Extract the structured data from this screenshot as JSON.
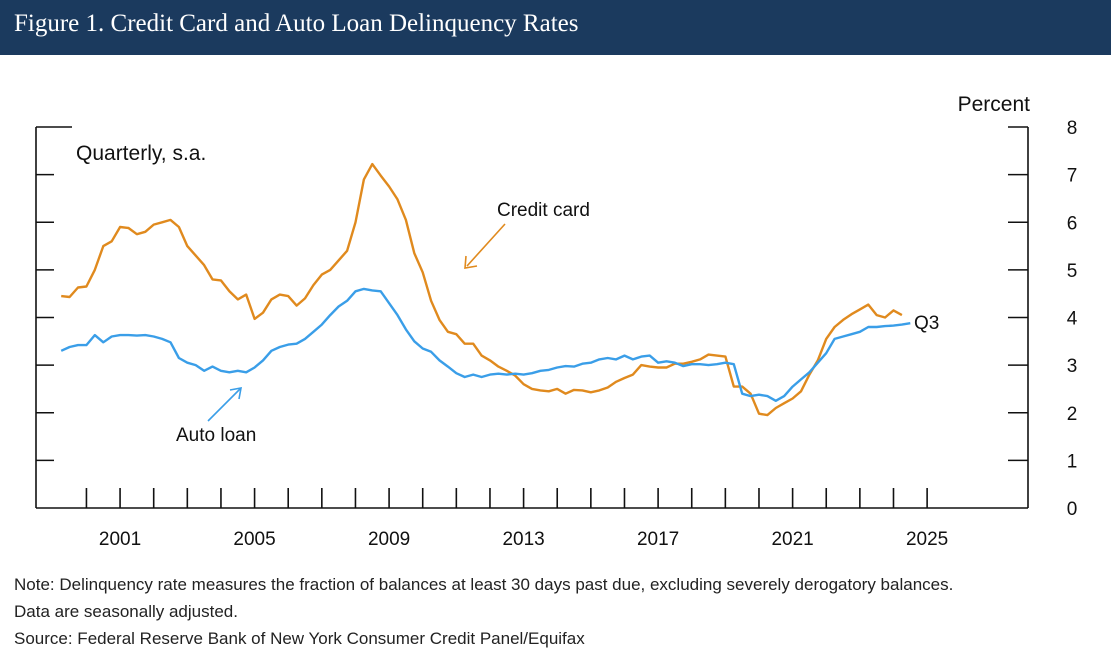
{
  "header": {
    "title": "Figure 1. Credit Card and Auto Loan Delinquency Rates"
  },
  "chart_data": {
    "type": "line",
    "title": "Figure 1. Credit Card and Auto Loan Delinquency Rates",
    "ylabel": "Percent",
    "subtitle": "Quarterly, s.a.",
    "ylim": [
      0,
      8
    ],
    "yticks": [
      0,
      1,
      2,
      3,
      4,
      5,
      6,
      7,
      8
    ],
    "xlim": [
      1999,
      2028.5
    ],
    "xtick_labels": [
      "2001",
      "2005",
      "2009",
      "2013",
      "2017",
      "2021",
      "2025"
    ],
    "xtick_label_years": [
      2001,
      2005,
      2009,
      2013,
      2017,
      2021,
      2025
    ],
    "minor_tick_years": [
      2000,
      2001,
      2002,
      2003,
      2004,
      2005,
      2006,
      2007,
      2008,
      2009,
      2010,
      2011,
      2012,
      2013,
      2014,
      2015,
      2016,
      2017,
      2018,
      2019,
      2020,
      2021,
      2022,
      2023,
      2024,
      2025
    ],
    "annotations": {
      "credit_card": "Credit card",
      "auto_loan": "Auto loan",
      "latest": "Q3"
    },
    "series": [
      {
        "name": "Credit card",
        "color": "#e08a1e",
        "points": [
          [
            1999.75,
            4.45
          ],
          [
            2000.0,
            4.43
          ],
          [
            2000.25,
            4.63
          ],
          [
            2000.5,
            4.65
          ],
          [
            2000.75,
            5.0
          ],
          [
            2001.0,
            5.5
          ],
          [
            2001.25,
            5.6
          ],
          [
            2001.5,
            5.9
          ],
          [
            2001.75,
            5.88
          ],
          [
            2002.0,
            5.75
          ],
          [
            2002.25,
            5.8
          ],
          [
            2002.5,
            5.95
          ],
          [
            2002.75,
            6.0
          ],
          [
            2003.0,
            6.05
          ],
          [
            2003.25,
            5.9
          ],
          [
            2003.5,
            5.5
          ],
          [
            2003.75,
            5.3
          ],
          [
            2004.0,
            5.1
          ],
          [
            2004.25,
            4.8
          ],
          [
            2004.5,
            4.78
          ],
          [
            2004.75,
            4.55
          ],
          [
            2005.0,
            4.38
          ],
          [
            2005.25,
            4.48
          ],
          [
            2005.5,
            3.97
          ],
          [
            2005.75,
            4.1
          ],
          [
            2006.0,
            4.38
          ],
          [
            2006.25,
            4.48
          ],
          [
            2006.5,
            4.45
          ],
          [
            2006.75,
            4.25
          ],
          [
            2007.0,
            4.4
          ],
          [
            2007.25,
            4.68
          ],
          [
            2007.5,
            4.9
          ],
          [
            2007.75,
            5.0
          ],
          [
            2008.0,
            5.2
          ],
          [
            2008.25,
            5.4
          ],
          [
            2008.5,
            6.0
          ],
          [
            2008.75,
            6.9
          ],
          [
            2009.0,
            7.22
          ],
          [
            2009.25,
            6.98
          ],
          [
            2009.5,
            6.75
          ],
          [
            2009.75,
            6.48
          ],
          [
            2010.0,
            6.05
          ],
          [
            2010.25,
            5.35
          ],
          [
            2010.5,
            4.95
          ],
          [
            2010.75,
            4.35
          ],
          [
            2011.0,
            3.95
          ],
          [
            2011.25,
            3.7
          ],
          [
            2011.5,
            3.65
          ],
          [
            2011.75,
            3.45
          ],
          [
            2012.0,
            3.45
          ],
          [
            2012.25,
            3.2
          ],
          [
            2012.5,
            3.1
          ],
          [
            2012.75,
            2.97
          ],
          [
            2013.0,
            2.88
          ],
          [
            2013.25,
            2.78
          ],
          [
            2013.5,
            2.6
          ],
          [
            2013.75,
            2.5
          ],
          [
            2014.0,
            2.47
          ],
          [
            2014.25,
            2.45
          ],
          [
            2014.5,
            2.5
          ],
          [
            2014.75,
            2.4
          ],
          [
            2015.0,
            2.48
          ],
          [
            2015.25,
            2.47
          ],
          [
            2015.5,
            2.43
          ],
          [
            2015.75,
            2.47
          ],
          [
            2016.0,
            2.53
          ],
          [
            2016.25,
            2.65
          ],
          [
            2016.5,
            2.73
          ],
          [
            2016.75,
            2.8
          ],
          [
            2017.0,
            3.0
          ],
          [
            2017.25,
            2.97
          ],
          [
            2017.5,
            2.95
          ],
          [
            2017.75,
            2.95
          ],
          [
            2018.0,
            3.03
          ],
          [
            2018.25,
            3.03
          ],
          [
            2018.5,
            3.07
          ],
          [
            2018.75,
            3.12
          ],
          [
            2019.0,
            3.22
          ],
          [
            2019.25,
            3.2
          ],
          [
            2019.5,
            3.18
          ],
          [
            2019.75,
            2.55
          ],
          [
            2020.0,
            2.55
          ],
          [
            2020.25,
            2.4
          ],
          [
            2020.5,
            1.98
          ],
          [
            2020.75,
            1.95
          ],
          [
            2021.0,
            2.1
          ],
          [
            2021.25,
            2.2
          ],
          [
            2021.5,
            2.3
          ],
          [
            2021.75,
            2.45
          ],
          [
            2022.0,
            2.8
          ],
          [
            2022.25,
            3.1
          ],
          [
            2022.5,
            3.55
          ],
          [
            2022.75,
            3.8
          ],
          [
            2023.0,
            3.95
          ],
          [
            2023.25,
            4.07
          ],
          [
            2023.5,
            4.17
          ],
          [
            2023.75,
            4.27
          ],
          [
            2024.0,
            4.05
          ],
          [
            2024.25,
            4.0
          ],
          [
            2024.5,
            4.15
          ],
          [
            2024.75,
            4.05
          ]
        ]
      },
      {
        "name": "Auto loan",
        "color": "#3a9ee8",
        "points": [
          [
            1999.75,
            3.3
          ],
          [
            2000.0,
            3.38
          ],
          [
            2000.25,
            3.42
          ],
          [
            2000.5,
            3.42
          ],
          [
            2000.75,
            3.63
          ],
          [
            2001.0,
            3.48
          ],
          [
            2001.25,
            3.6
          ],
          [
            2001.5,
            3.63
          ],
          [
            2001.75,
            3.63
          ],
          [
            2002.0,
            3.62
          ],
          [
            2002.25,
            3.63
          ],
          [
            2002.5,
            3.6
          ],
          [
            2002.75,
            3.55
          ],
          [
            2003.0,
            3.48
          ],
          [
            2003.25,
            3.15
          ],
          [
            2003.5,
            3.05
          ],
          [
            2003.75,
            3.0
          ],
          [
            2004.0,
            2.88
          ],
          [
            2004.25,
            2.97
          ],
          [
            2004.5,
            2.88
          ],
          [
            2004.75,
            2.85
          ],
          [
            2005.0,
            2.88
          ],
          [
            2005.25,
            2.85
          ],
          [
            2005.5,
            2.95
          ],
          [
            2005.75,
            3.1
          ],
          [
            2006.0,
            3.3
          ],
          [
            2006.25,
            3.38
          ],
          [
            2006.5,
            3.43
          ],
          [
            2006.75,
            3.45
          ],
          [
            2007.0,
            3.55
          ],
          [
            2007.25,
            3.7
          ],
          [
            2007.5,
            3.85
          ],
          [
            2007.75,
            4.05
          ],
          [
            2008.0,
            4.23
          ],
          [
            2008.25,
            4.35
          ],
          [
            2008.5,
            4.55
          ],
          [
            2008.75,
            4.6
          ],
          [
            2009.0,
            4.57
          ],
          [
            2009.25,
            4.55
          ],
          [
            2009.5,
            4.3
          ],
          [
            2009.75,
            4.05
          ],
          [
            2010.0,
            3.75
          ],
          [
            2010.25,
            3.5
          ],
          [
            2010.5,
            3.35
          ],
          [
            2010.75,
            3.28
          ],
          [
            2011.0,
            3.1
          ],
          [
            2011.25,
            2.97
          ],
          [
            2011.5,
            2.83
          ],
          [
            2011.75,
            2.75
          ],
          [
            2012.0,
            2.8
          ],
          [
            2012.25,
            2.75
          ],
          [
            2012.5,
            2.8
          ],
          [
            2012.75,
            2.82
          ],
          [
            2013.0,
            2.8
          ],
          [
            2013.25,
            2.82
          ],
          [
            2013.5,
            2.8
          ],
          [
            2013.75,
            2.83
          ],
          [
            2014.0,
            2.88
          ],
          [
            2014.25,
            2.9
          ],
          [
            2014.5,
            2.95
          ],
          [
            2014.75,
            2.98
          ],
          [
            2015.0,
            2.97
          ],
          [
            2015.25,
            3.03
          ],
          [
            2015.5,
            3.05
          ],
          [
            2015.75,
            3.12
          ],
          [
            2016.0,
            3.15
          ],
          [
            2016.25,
            3.12
          ],
          [
            2016.5,
            3.2
          ],
          [
            2016.75,
            3.12
          ],
          [
            2017.0,
            3.18
          ],
          [
            2017.25,
            3.2
          ],
          [
            2017.5,
            3.05
          ],
          [
            2017.75,
            3.08
          ],
          [
            2018.0,
            3.05
          ],
          [
            2018.25,
            2.98
          ],
          [
            2018.5,
            3.02
          ],
          [
            2018.75,
            3.02
          ],
          [
            2019.0,
            3.0
          ],
          [
            2019.25,
            3.02
          ],
          [
            2019.5,
            3.05
          ],
          [
            2019.75,
            3.02
          ],
          [
            2020.0,
            2.4
          ],
          [
            2020.25,
            2.35
          ],
          [
            2020.5,
            2.38
          ],
          [
            2020.75,
            2.35
          ],
          [
            2021.0,
            2.25
          ],
          [
            2021.25,
            2.35
          ],
          [
            2021.5,
            2.55
          ],
          [
            2021.75,
            2.7
          ],
          [
            2022.0,
            2.85
          ],
          [
            2022.25,
            3.05
          ],
          [
            2022.5,
            3.25
          ],
          [
            2022.75,
            3.55
          ],
          [
            2023.0,
            3.6
          ],
          [
            2023.25,
            3.65
          ],
          [
            2023.5,
            3.7
          ],
          [
            2023.75,
            3.8
          ],
          [
            2024.0,
            3.8
          ],
          [
            2024.25,
            3.82
          ],
          [
            2024.5,
            3.83
          ],
          [
            2024.75,
            3.85
          ],
          [
            2025.0,
            3.88
          ]
        ]
      }
    ]
  },
  "notes": {
    "line1": "Note: Delinquency rate measures the fraction of balances at least 30 days past due, excluding severely derogatory balances.",
    "line2": "Data are seasonally adjusted.",
    "source": "Source: Federal Reserve Bank of New York Consumer Credit Panel/Equifax"
  }
}
